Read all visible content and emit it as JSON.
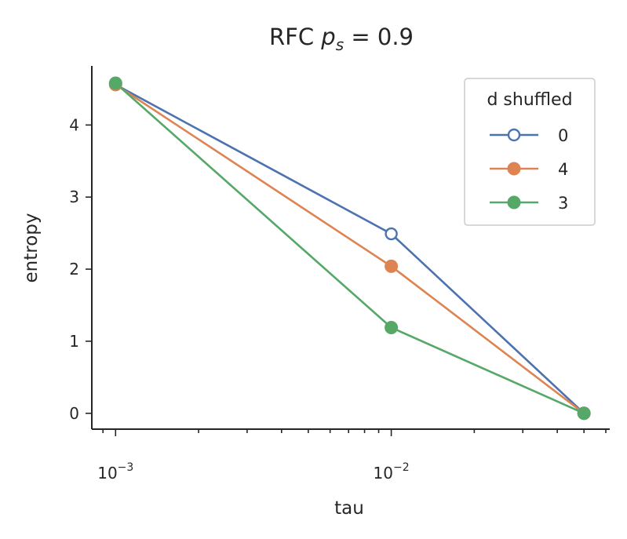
{
  "chart_data": {
    "type": "line",
    "title_main": "RFC ",
    "title_var": "p",
    "title_sub": "s",
    "title_rest": " = 0.9",
    "xlabel": "tau",
    "ylabel": "entropy",
    "xscale": "log",
    "xlim": [
      0.00082,
      0.062
    ],
    "ylim": [
      -0.22,
      4.82
    ],
    "x": [
      0.001,
      0.01,
      0.05
    ],
    "yticks": [
      "0",
      "1",
      "2",
      "3",
      "4"
    ],
    "xticks": [
      {
        "base": "10",
        "exp": "−3"
      },
      {
        "base": "10",
        "exp": "−2"
      }
    ],
    "grid": false,
    "legend_placement": "top-right",
    "legend_title": "d shuffled",
    "series": [
      {
        "name": "0",
        "values": [
          4.56,
          2.49,
          0.0
        ],
        "color": "#4c72b0",
        "marker": "open-circle"
      },
      {
        "name": "4",
        "values": [
          4.56,
          2.04,
          0.0
        ],
        "color": "#dd8452",
        "marker": "filled-circle"
      },
      {
        "name": "3",
        "values": [
          4.58,
          1.19,
          0.0
        ],
        "color": "#55a868",
        "marker": "filled-circle"
      }
    ]
  }
}
